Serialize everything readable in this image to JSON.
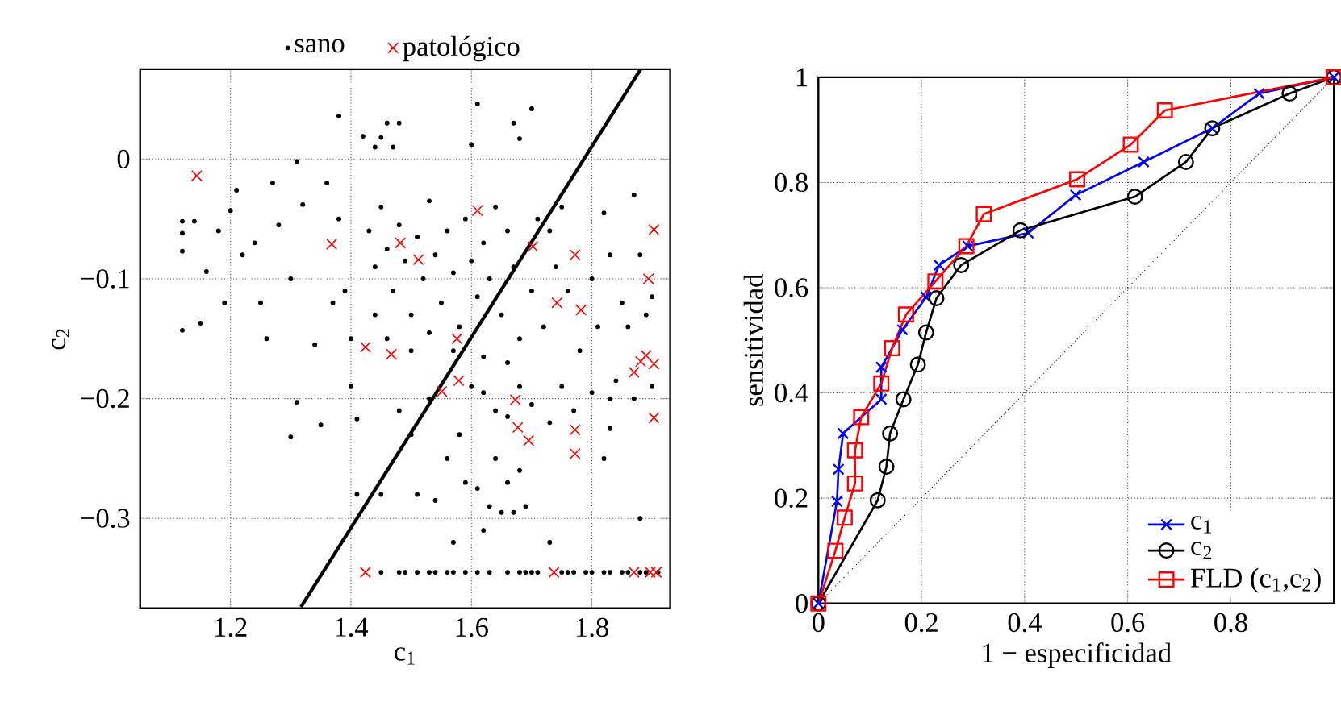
{
  "chart_data": [
    {
      "type": "scatter",
      "xlabel": "c$_{1}$",
      "ylabel": "c$_{2}$",
      "xlim": [
        1.05,
        1.93
      ],
      "ylim": [
        -0.375,
        0.075
      ],
      "xticks": [
        1.2,
        1.4,
        1.6,
        1.8
      ],
      "yticks": [
        {
          "value": -0.3,
          "label": "−0.3"
        },
        {
          "value": -0.2,
          "label": "−0.2"
        },
        {
          "value": -0.1,
          "label": "−0.1"
        },
        0
      ],
      "grid": true,
      "legend": "top",
      "series": [
        {
          "name": "sano",
          "color": "#000000",
          "marker": "circle",
          "x": [
            1.38,
            1.44,
            1.46,
            1.48,
            1.61,
            1.67,
            1.7,
            1.68,
            1.42,
            1.45,
            1.47,
            1.6,
            1.12,
            1.12,
            1.12,
            1.12,
            1.15,
            1.14,
            1.16,
            1.18,
            1.19,
            1.2,
            1.21,
            1.22,
            1.24,
            1.25,
            1.26,
            1.27,
            1.28,
            1.3,
            1.31,
            1.32,
            1.3,
            1.31,
            1.34,
            1.35,
            1.36,
            1.37,
            1.38,
            1.39,
            1.4,
            1.41,
            1.41,
            1.4,
            1.43,
            1.44,
            1.45,
            1.46,
            1.47,
            1.48,
            1.49,
            1.5,
            1.51,
            1.52,
            1.53,
            1.54,
            1.55,
            1.56,
            1.57,
            1.58,
            1.59,
            1.6,
            1.61,
            1.62,
            1.63,
            1.64,
            1.65,
            1.66,
            1.67,
            1.68,
            1.44,
            1.46,
            1.5,
            1.53,
            1.57,
            1.62,
            1.66,
            1.7,
            1.72,
            1.74,
            1.71,
            1.73,
            1.76,
            1.78,
            1.8,
            1.81,
            1.83,
            1.85,
            1.84,
            1.86,
            1.87,
            1.88,
            1.89,
            1.9,
            1.9,
            1.87,
            1.82,
            1.75,
            1.6,
            1.62,
            1.64,
            1.66,
            1.68,
            1.7,
            1.73,
            1.75,
            1.77,
            1.8,
            1.83,
            1.83,
            1.82,
            1.48,
            1.5,
            1.53,
            1.56,
            1.58,
            1.59,
            1.61,
            1.62,
            1.63,
            1.65,
            1.67,
            1.69,
            1.66,
            1.68,
            1.64,
            1.54,
            1.57,
            1.73,
            1.88,
            1.45,
            1.51,
            1.45,
            1.48,
            1.49,
            1.51,
            1.53,
            1.54,
            1.56,
            1.57,
            1.59,
            1.61,
            1.63,
            1.66,
            1.68,
            1.69,
            1.7,
            1.71,
            1.75,
            1.76,
            1.77,
            1.79,
            1.8,
            1.82,
            1.83,
            1.85,
            1.86,
            1.88,
            1.89,
            1.91
          ],
          "values": [
            0.036,
            0.01,
            0.03,
            0.03,
            0.046,
            0.03,
            0.042,
            0.017,
            0.019,
            0.018,
            0.01,
            0.012,
            -0.052,
            -0.062,
            -0.077,
            -0.143,
            -0.137,
            -0.052,
            -0.094,
            -0.06,
            -0.12,
            -0.043,
            -0.026,
            -0.08,
            -0.07,
            -0.12,
            -0.15,
            -0.02,
            -0.055,
            -0.1,
            -0.002,
            -0.038,
            -0.232,
            -0.203,
            -0.155,
            -0.222,
            -0.02,
            -0.12,
            -0.05,
            -0.11,
            -0.19,
            -0.28,
            -0.217,
            -0.15,
            -0.06,
            -0.09,
            -0.04,
            -0.075,
            -0.11,
            -0.055,
            -0.085,
            -0.13,
            -0.065,
            -0.1,
            -0.035,
            -0.08,
            -0.12,
            -0.06,
            -0.095,
            -0.14,
            -0.05,
            -0.085,
            -0.115,
            -0.07,
            -0.1,
            -0.04,
            -0.13,
            -0.06,
            -0.09,
            -0.15,
            -0.13,
            -0.15,
            -0.16,
            -0.145,
            -0.16,
            -0.165,
            -0.17,
            -0.11,
            -0.14,
            -0.09,
            -0.05,
            -0.06,
            -0.11,
            -0.16,
            -0.1,
            -0.14,
            -0.08,
            -0.12,
            -0.185,
            -0.14,
            -0.2,
            -0.08,
            -0.13,
            -0.115,
            -0.19,
            -0.03,
            -0.045,
            -0.04,
            -0.19,
            -0.195,
            -0.21,
            -0.215,
            -0.19,
            -0.205,
            -0.22,
            -0.19,
            -0.21,
            -0.195,
            -0.2,
            -0.225,
            -0.25,
            -0.21,
            -0.23,
            -0.2,
            -0.25,
            -0.23,
            -0.27,
            -0.275,
            -0.31,
            -0.29,
            -0.295,
            -0.295,
            -0.29,
            -0.27,
            -0.26,
            -0.25,
            -0.285,
            -0.32,
            -0.32,
            -0.3,
            -0.28,
            -0.28,
            -0.345,
            -0.345,
            -0.345,
            -0.345,
            -0.345,
            -0.345,
            -0.345,
            -0.345,
            -0.345,
            -0.345,
            -0.345,
            -0.345,
            -0.345,
            -0.345,
            -0.345,
            -0.345,
            -0.345,
            -0.345,
            -0.345,
            -0.345,
            -0.345,
            -0.345,
            -0.345,
            -0.345,
            -0.345,
            -0.345,
            -0.345,
            -0.345
          ]
        },
        {
          "name": "patológico",
          "color": "#ff0000",
          "marker": "cross",
          "x": [
            1.144,
            1.368,
            1.424,
            1.467,
            1.482,
            1.512,
            1.551,
            1.579,
            1.576,
            1.61,
            1.673,
            1.677,
            1.695,
            1.702,
            1.742,
            1.772,
            1.772,
            1.772,
            1.782,
            1.87,
            1.881,
            1.89,
            1.903,
            1.894,
            1.903,
            1.903,
            1.424,
            1.737,
            1.87,
            1.897,
            1.907
          ],
          "values": [
            -0.014,
            -0.071,
            -0.157,
            -0.163,
            -0.07,
            -0.084,
            -0.194,
            -0.185,
            -0.15,
            -0.043,
            -0.201,
            -0.224,
            -0.235,
            -0.073,
            -0.12,
            -0.08,
            -0.226,
            -0.246,
            -0.126,
            -0.178,
            -0.169,
            -0.164,
            -0.171,
            -0.1,
            -0.059,
            -0.216,
            -0.345,
            -0.345,
            -0.345,
            -0.345,
            -0.345
          ]
        },
        {
          "type": "line",
          "color": "#000000",
          "marker": "none",
          "line_style": "solid",
          "x": [
            1.317,
            1.881
          ],
          "values": [
            -0.374,
            0.075
          ]
        }
      ]
    },
    {
      "type": "line",
      "xlabel": "1 − especificidad",
      "ylabel": "sensitividad",
      "xlim": [
        0,
        1
      ],
      "ylim": [
        0,
        1
      ],
      "xticks": [
        0,
        0.2,
        0.4,
        0.6,
        0.8
      ],
      "yticks": [
        0,
        0.2,
        0.4,
        0.6,
        0.8,
        1
      ],
      "grid": true,
      "legend": "bottom right",
      "series": [
        {
          "name": "c$_{1}$",
          "color": "#0000ff",
          "marker": "cross",
          "line_style": "solid",
          "x": [
            0,
            0.036,
            0.039,
            0.048,
            0.122,
            0.122,
            0.163,
            0.209,
            0.234,
            0.29,
            0.407,
            0.499,
            0.631,
            0.764,
            0.855,
            1
          ],
          "values": [
            0,
            0.194,
            0.255,
            0.323,
            0.388,
            0.449,
            0.52,
            0.582,
            0.643,
            0.679,
            0.704,
            0.776,
            0.839,
            0.903,
            0.969,
            1
          ]
        },
        {
          "name": "c$_{2}$",
          "color": "#000000",
          "marker": "circle",
          "line_style": "solid",
          "x": [
            0,
            0.115,
            0.132,
            0.139,
            0.165,
            0.193,
            0.209,
            0.229,
            0.277,
            0.392,
            0.614,
            0.713,
            0.764,
            0.914,
            1
          ],
          "values": [
            0,
            0.196,
            0.26,
            0.323,
            0.388,
            0.454,
            0.515,
            0.58,
            0.643,
            0.709,
            0.773,
            0.839,
            0.903,
            0.969,
            1
          ]
        },
        {
          "name": "FLD (c$_{1}$,c$_{2}$)",
          "color": "#ff0000",
          "marker": "square",
          "line_style": "solid",
          "x": [
            0,
            0.033,
            0.051,
            0.071,
            0.071,
            0.083,
            0.122,
            0.143,
            0.17,
            0.227,
            0.287,
            0.321,
            0.502,
            0.606,
            0.672,
            1
          ],
          "values": [
            0,
            0.1,
            0.163,
            0.228,
            0.291,
            0.354,
            0.418,
            0.485,
            0.549,
            0.612,
            0.679,
            0.74,
            0.806,
            0.872,
            0.937,
            1
          ]
        },
        {
          "color": "#000000",
          "marker": "none",
          "line_style": "dotted",
          "x": [
            0,
            1
          ],
          "values": [
            0,
            1
          ]
        }
      ]
    }
  ]
}
